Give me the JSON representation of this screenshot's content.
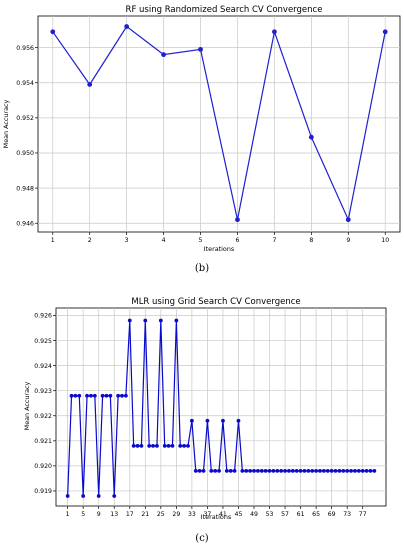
{
  "chart_data": [
    {
      "type": "line",
      "title": "RF using Randomized Search CV Convergence",
      "xlabel": "Iterations",
      "ylabel": "Mean Accuracy",
      "caption": "(b)",
      "x": [
        1,
        2,
        3,
        4,
        5,
        6,
        7,
        8,
        9,
        10
      ],
      "series": [
        {
          "values": [
            0.9569,
            0.9539,
            0.9572,
            0.9556,
            0.9559,
            0.9462,
            0.9569,
            0.9509,
            0.9462,
            0.9569
          ]
        }
      ],
      "xticks": [
        "1",
        "2",
        "3",
        "4",
        "5",
        "6",
        "7",
        "8",
        "9",
        "10"
      ],
      "yticks": [
        {
          "v": 0.946,
          "label": "0.946"
        },
        {
          "v": 0.948,
          "label": "0.948"
        },
        {
          "v": 0.95,
          "label": "0.950"
        },
        {
          "v": 0.952,
          "label": "0.952"
        },
        {
          "v": 0.954,
          "label": "0.954"
        },
        {
          "v": 0.956,
          "label": "0.956"
        }
      ],
      "xlim": [
        0.6,
        10.4
      ],
      "ylim": [
        0.9455,
        0.9578
      ],
      "grid": true,
      "color": "#1f1fd0"
    },
    {
      "type": "line",
      "title": "MLR using Grid Search CV Convergence",
      "xlabel": "Iterations",
      "ylabel": "Mean Accuracy",
      "caption": "(c)",
      "x": [
        1,
        2,
        3,
        4,
        5,
        6,
        7,
        8,
        9,
        10,
        11,
        12,
        13,
        14,
        15,
        16,
        17,
        18,
        19,
        20,
        21,
        22,
        23,
        24,
        25,
        26,
        27,
        28,
        29,
        30,
        31,
        32,
        33,
        34,
        35,
        36,
        37,
        38,
        39,
        40,
        41,
        42,
        43,
        44,
        45,
        46,
        47,
        48,
        49,
        50,
        51,
        52,
        53,
        54,
        55,
        56,
        57,
        58,
        59,
        60,
        61,
        62,
        63,
        64,
        65,
        66,
        67,
        68,
        69,
        70,
        71,
        72,
        73,
        74,
        75,
        76,
        77,
        78,
        79,
        80
      ],
      "series": [
        {
          "values": [
            0.9188,
            0.9228,
            0.9228,
            0.9228,
            0.9188,
            0.9228,
            0.9228,
            0.9228,
            0.9188,
            0.9228,
            0.9228,
            0.9228,
            0.9188,
            0.9228,
            0.9228,
            0.9228,
            0.9258,
            0.9208,
            0.9208,
            0.9208,
            0.9258,
            0.9208,
            0.9208,
            0.9208,
            0.9258,
            0.9208,
            0.9208,
            0.9208,
            0.9258,
            0.9208,
            0.9208,
            0.9208,
            0.9218,
            0.9198,
            0.9198,
            0.9198,
            0.9218,
            0.9198,
            0.9198,
            0.9198,
            0.9218,
            0.9198,
            0.9198,
            0.9198,
            0.9218,
            0.9198,
            0.9198,
            0.9198,
            0.9198,
            0.9198,
            0.9198,
            0.9198,
            0.9198,
            0.9198,
            0.9198,
            0.9198,
            0.9198,
            0.9198,
            0.9198,
            0.9198,
            0.9198,
            0.9198,
            0.9198,
            0.9198,
            0.9198,
            0.9198,
            0.9198,
            0.9198,
            0.9198,
            0.9198,
            0.9198,
            0.9198,
            0.9198,
            0.9198,
            0.9198,
            0.9198,
            0.9198,
            0.9198,
            0.9198,
            0.9198
          ]
        }
      ],
      "xticks": [
        "1",
        "5",
        "9",
        "13",
        "17",
        "21",
        "25",
        "29",
        "33",
        "37",
        "41",
        "45",
        "49",
        "53",
        "57",
        "61",
        "65",
        "69",
        "73",
        "77"
      ],
      "xtickvals": [
        1,
        5,
        9,
        13,
        17,
        21,
        25,
        29,
        33,
        37,
        41,
        45,
        49,
        53,
        57,
        61,
        65,
        69,
        73,
        77
      ],
      "yticks": [
        {
          "v": 0.919,
          "label": "0.919"
        },
        {
          "v": 0.92,
          "label": "0.920"
        },
        {
          "v": 0.921,
          "label": "0.921"
        },
        {
          "v": 0.922,
          "label": "0.922"
        },
        {
          "v": 0.923,
          "label": "0.923"
        },
        {
          "v": 0.924,
          "label": "0.924"
        },
        {
          "v": 0.925,
          "label": "0.925"
        },
        {
          "v": 0.926,
          "label": "0.926"
        }
      ],
      "xlim": [
        -2,
        83
      ],
      "ylim": [
        0.9184,
        0.9263
      ],
      "grid": true,
      "color": "#0a0acc"
    }
  ]
}
